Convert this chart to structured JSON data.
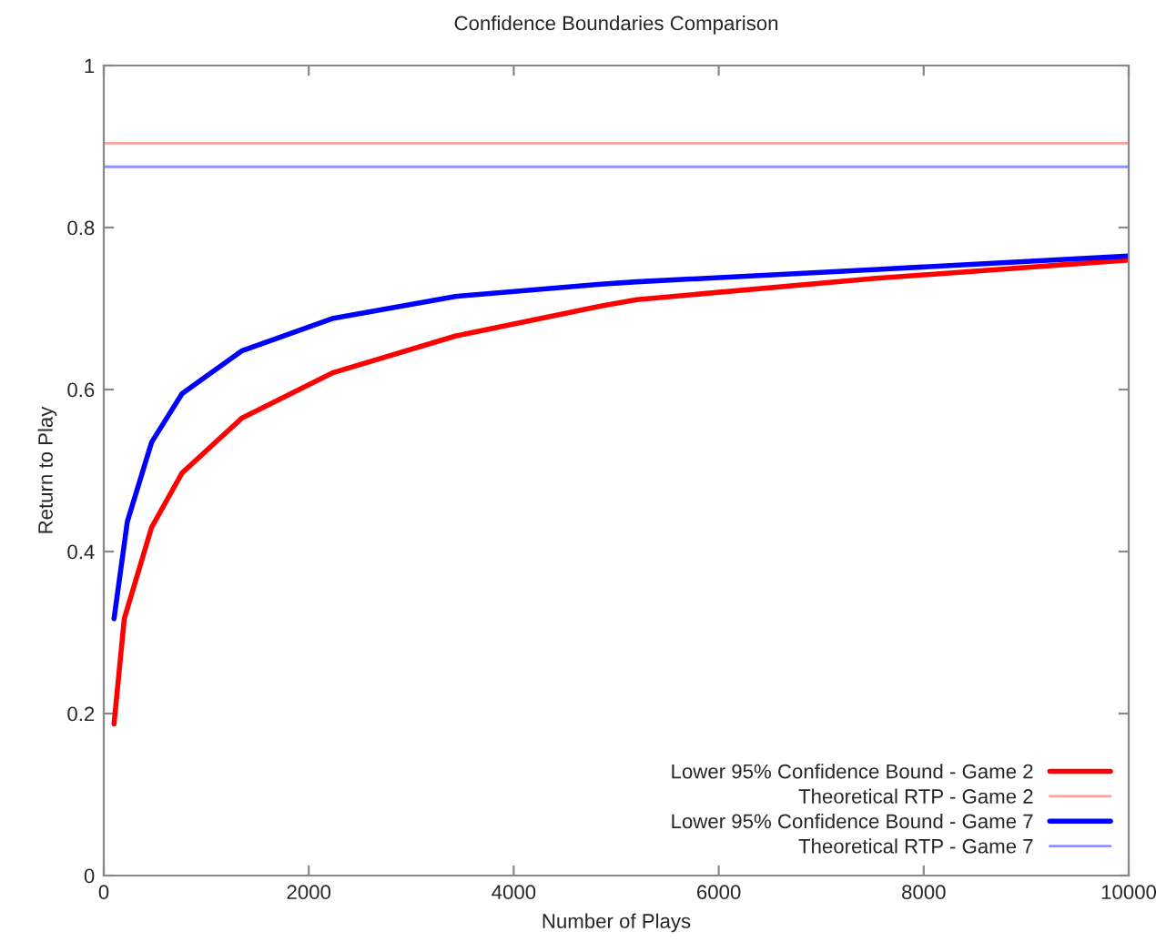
{
  "chart_data": {
    "type": "line",
    "title": "Confidence Boundaries Comparison",
    "xlabel": "Number of Plays",
    "ylabel": "Return to Play",
    "xlim": [
      0,
      10000
    ],
    "xticks": [
      0,
      2000,
      4000,
      6000,
      8000,
      10000
    ],
    "ylim": [
      0,
      1
    ],
    "yticks": [
      0,
      0.2,
      0.4,
      0.6,
      0.8,
      1
    ],
    "grid": false,
    "legend": "bottom right",
    "series": [
      {
        "name": "Lower 95% Confidence Bound - Game 2",
        "color": "#ff0000",
        "x": [
          100,
          200,
          467,
          764,
          1350,
          2240,
          3430,
          4850,
          5200,
          7510,
          10000
        ],
        "values": [
          0.187,
          0.317,
          0.43,
          0.497,
          0.565,
          0.621,
          0.666,
          0.703,
          0.711,
          0.737,
          0.76
        ]
      },
      {
        "name": "Theoretical RTP - Game 2",
        "color": "#ff9f9f",
        "x": [
          0,
          10000
        ],
        "values": [
          0.904,
          0.904
        ]
      },
      {
        "name": "Lower 95% Confidence Bound - Game 7",
        "color": "#0000ff",
        "x": [
          100,
          230,
          467,
          764,
          1350,
          2240,
          3430,
          4850,
          5200,
          7510,
          10000
        ],
        "values": [
          0.317,
          0.437,
          0.535,
          0.595,
          0.648,
          0.688,
          0.715,
          0.73,
          0.733,
          0.748,
          0.765
        ]
      },
      {
        "name": "Theoretical RTP - Game 7",
        "color": "#8f8fff",
        "x": [
          0,
          10000
        ],
        "values": [
          0.875,
          0.875
        ]
      }
    ]
  }
}
